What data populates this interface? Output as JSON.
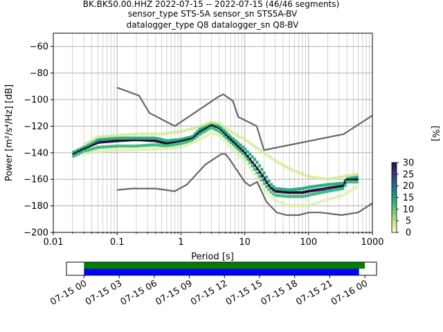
{
  "chart_data": [
    {
      "type": "heatmap",
      "title_lines": [
        "BK.BK50.00.HHZ   2022-07-15 -- 2022-07-15  (46/46 segments)",
        "sensor_type STS-5A sensor_sn STS5A-BV",
        "datalogger_type Q8 datalogger_sn Q8-BV"
      ],
      "xlabel": "Period [s]",
      "ylabel": "Power [m²/s⁴/Hz] [dB]",
      "xscale": "log",
      "xlim": [
        0.01,
        1000
      ],
      "ylim": [
        -200,
        -50
      ],
      "xtick_values": [
        0.01,
        0.1,
        1,
        10,
        100,
        1000
      ],
      "xtick_labels": [
        "0.01",
        "0.1",
        "1",
        "10",
        "100",
        "1000"
      ],
      "ytick_values": [
        -60,
        -80,
        -100,
        -120,
        -140,
        -160,
        -180,
        -200
      ],
      "ytick_labels": [
        "−60",
        "−80",
        "−100",
        "−120",
        "−140",
        "−160",
        "−180",
        "−200"
      ],
      "grid": true,
      "colorbar": {
        "label": "[%]",
        "range": [
          0,
          30
        ],
        "tick_values": [
          0,
          5,
          10,
          15,
          20,
          25,
          30
        ],
        "tick_labels": [
          "0",
          "5",
          "10",
          "15",
          "20",
          "25",
          "30"
        ],
        "colormap": [
          "#ffffe0",
          "#c8e887",
          "#7fd176",
          "#2eb57d",
          "#1a8a8a",
          "#2c5c8c",
          "#3b3377",
          "#2a0f45"
        ]
      },
      "mean_curve": {
        "color": "#000000",
        "points": [
          [
            0.02,
            -141
          ],
          [
            0.03,
            -137
          ],
          [
            0.05,
            -133
          ],
          [
            0.1,
            -131
          ],
          [
            0.2,
            -131
          ],
          [
            0.4,
            -131
          ],
          [
            0.6,
            -133
          ],
          [
            1,
            -131
          ],
          [
            1.5,
            -129
          ],
          [
            2,
            -124
          ],
          [
            3,
            -119
          ],
          [
            4,
            -122
          ],
          [
            6,
            -130
          ],
          [
            10,
            -140
          ],
          [
            15,
            -150
          ],
          [
            20,
            -158
          ],
          [
            25,
            -166
          ],
          [
            30,
            -169
          ],
          [
            50,
            -170
          ],
          [
            80,
            -170
          ],
          [
            100,
            -169
          ],
          [
            200,
            -166
          ],
          [
            350,
            -165
          ],
          [
            380,
            -160
          ],
          [
            600,
            -160
          ]
        ]
      },
      "nhnm_curve": {
        "color": "#666666",
        "points": [
          [
            0.1,
            -91
          ],
          [
            0.22,
            -97
          ],
          [
            0.32,
            -110
          ],
          [
            0.8,
            -120
          ],
          [
            3.8,
            -98
          ],
          [
            4.6,
            -96
          ],
          [
            6.5,
            -101
          ],
          [
            7.9,
            -113
          ],
          [
            15.4,
            -120
          ],
          [
            20,
            -138
          ],
          [
            354,
            -126
          ],
          [
            1000,
            -112
          ]
        ]
      },
      "nlnm_curve": {
        "color": "#666666",
        "points": [
          [
            0.1,
            -168
          ],
          [
            0.17,
            -167
          ],
          [
            0.4,
            -167
          ],
          [
            0.8,
            -169
          ],
          [
            1.24,
            -164
          ],
          [
            2.4,
            -149
          ],
          [
            4.3,
            -141
          ],
          [
            5,
            -141
          ],
          [
            6,
            -146
          ],
          [
            10,
            -162
          ],
          [
            12,
            -165
          ],
          [
            15.6,
            -162
          ],
          [
            21.9,
            -177
          ],
          [
            31.6,
            -185
          ],
          [
            45,
            -187
          ],
          [
            70,
            -187
          ],
          [
            101,
            -185
          ],
          [
            154,
            -185
          ],
          [
            328,
            -187
          ],
          [
            600,
            -185
          ],
          [
            1000,
            -178
          ]
        ]
      },
      "density_bands": [
        {
          "name_hint": "core",
          "percent": 28,
          "points": [
            [
              0.02,
              -142
            ],
            [
              0.03,
              -137
            ],
            [
              0.05,
              -132
            ],
            [
              0.1,
              -131
            ],
            [
              0.2,
              -130
            ],
            [
              0.4,
              -131
            ],
            [
              0.6,
              -133
            ],
            [
              1,
              -131
            ],
            [
              1.5,
              -129
            ],
            [
              2,
              -124
            ],
            [
              3,
              -119
            ],
            [
              4,
              -121
            ],
            [
              6,
              -130
            ],
            [
              10,
              -140
            ],
            [
              15,
              -151
            ],
            [
              20,
              -160
            ],
            [
              25,
              -166
            ],
            [
              30,
              -169
            ],
            [
              50,
              -170
            ],
            [
              80,
              -170
            ],
            [
              100,
              -169
            ],
            [
              200,
              -167
            ],
            [
              350,
              -165
            ],
            [
              400,
              -160
            ],
            [
              600,
              -160
            ]
          ]
        },
        {
          "name_hint": "upper",
          "percent": 14,
          "points": [
            [
              0.02,
              -140
            ],
            [
              0.03,
              -136
            ],
            [
              0.05,
              -130
            ],
            [
              0.1,
              -129
            ],
            [
              0.2,
              -129
            ],
            [
              0.4,
              -129
            ],
            [
              0.6,
              -131
            ],
            [
              1,
              -130
            ],
            [
              1.5,
              -128
            ],
            [
              2,
              -122
            ],
            [
              3,
              -118
            ],
            [
              4,
              -120
            ],
            [
              6,
              -128
            ],
            [
              10,
              -137
            ],
            [
              15,
              -146
            ],
            [
              20,
              -155
            ],
            [
              25,
              -163
            ],
            [
              30,
              -167
            ],
            [
              50,
              -168
            ],
            [
              80,
              -167
            ],
            [
              100,
              -166
            ],
            [
              200,
              -164
            ],
            [
              350,
              -163
            ],
            [
              400,
              -159
            ],
            [
              600,
              -158
            ]
          ]
        },
        {
          "name_hint": "lower",
          "percent": 12,
          "points": [
            [
              0.02,
              -143
            ],
            [
              0.03,
              -139
            ],
            [
              0.05,
              -136
            ],
            [
              0.1,
              -135
            ],
            [
              0.2,
              -135
            ],
            [
              0.4,
              -134
            ],
            [
              0.6,
              -135
            ],
            [
              1,
              -133
            ],
            [
              1.5,
              -131
            ],
            [
              2,
              -126
            ],
            [
              3,
              -121
            ],
            [
              4,
              -124
            ],
            [
              6,
              -132
            ],
            [
              10,
              -142
            ],
            [
              15,
              -154
            ],
            [
              20,
              -163
            ],
            [
              25,
              -169
            ],
            [
              30,
              -172
            ],
            [
              50,
              -173
            ],
            [
              80,
              -173
            ],
            [
              100,
              -172
            ],
            [
              200,
              -169
            ],
            [
              350,
              -167
            ],
            [
              400,
              -162
            ],
            [
              600,
              -162
            ]
          ]
        },
        {
          "name_hint": "faint-upper",
          "percent": 4,
          "points": [
            [
              0.03,
              -134
            ],
            [
              0.05,
              -128
            ],
            [
              0.1,
              -127
            ],
            [
              0.2,
              -126
            ],
            [
              0.5,
              -126
            ],
            [
              1,
              -124
            ],
            [
              1.5,
              -122
            ],
            [
              2,
              -120
            ],
            [
              3,
              -117
            ],
            [
              4,
              -118
            ],
            [
              6,
              -124
            ],
            [
              10,
              -130
            ],
            [
              15,
              -136
            ],
            [
              20,
              -140
            ],
            [
              30,
              -146
            ],
            [
              50,
              -152
            ],
            [
              100,
              -158
            ],
            [
              200,
              -160
            ],
            [
              350,
              -158
            ],
            [
              600,
              -156
            ]
          ]
        },
        {
          "name_hint": "faint-lower",
          "percent": 3,
          "points": [
            [
              0.03,
              -141
            ],
            [
              0.05,
              -139
            ],
            [
              0.1,
              -138
            ],
            [
              0.2,
              -138
            ],
            [
              0.5,
              -137
            ],
            [
              1,
              -136
            ],
            [
              2,
              -130
            ],
            [
              3,
              -125
            ],
            [
              4,
              -127
            ],
            [
              6,
              -136
            ],
            [
              10,
              -146
            ],
            [
              15,
              -158
            ],
            [
              20,
              -168
            ],
            [
              30,
              -176
            ],
            [
              50,
              -180
            ],
            [
              100,
              -180
            ],
            [
              200,
              -175
            ],
            [
              350,
              -172
            ],
            [
              600,
              -165
            ]
          ]
        }
      ]
    },
    {
      "type": "timeline",
      "xtick_labels": [
        "07-15 00",
        "07-15 03",
        "07-15 06",
        "07-15 09",
        "07-15 12",
        "07-15 15",
        "07-15 18",
        "07-15 21",
        "07-16 00"
      ],
      "xlim_hours": [
        -1.5,
        25
      ],
      "tick_hours": [
        0,
        3,
        6,
        9,
        12,
        15,
        18,
        21,
        24
      ],
      "bars": [
        {
          "color": "#008000",
          "start_hour": 0,
          "end_hour": 24.0
        },
        {
          "color": "#0000ff",
          "start_hour": 0,
          "end_hour": 23.5
        }
      ]
    }
  ]
}
